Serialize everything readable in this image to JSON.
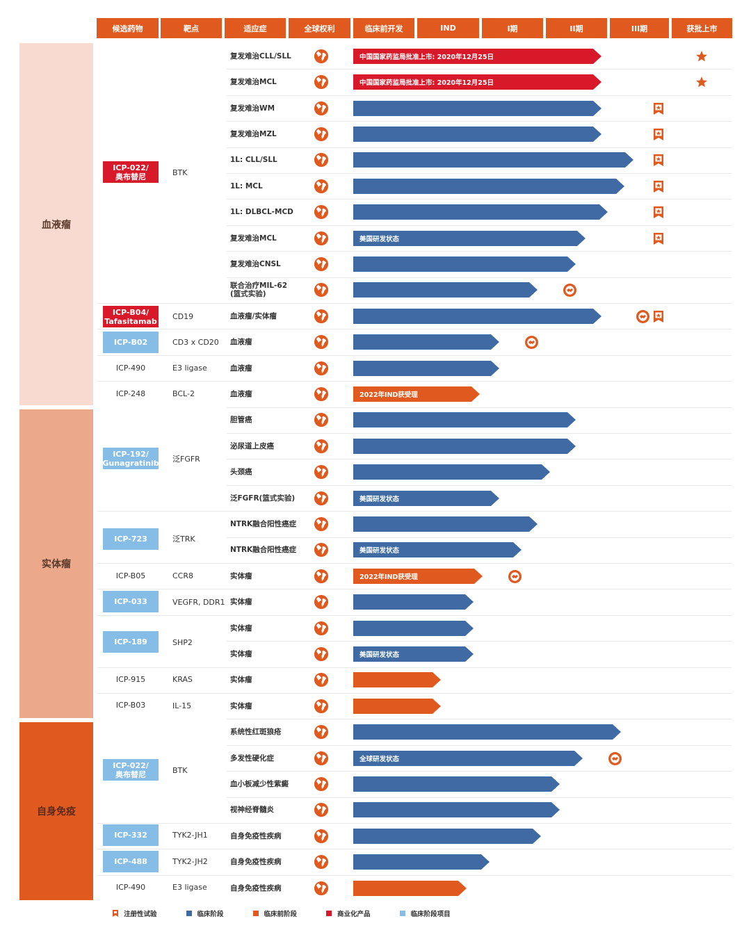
{
  "header": [
    "候选药物",
    "靶点",
    "适应症",
    "全球权利",
    "临床前开发",
    "IND",
    "I期",
    "II期",
    "III期",
    "获批上市"
  ],
  "categories": [
    {
      "label": "血液瘤",
      "color": "#f9dad0"
    },
    {
      "label": "实体瘤",
      "color": "#eba88a"
    },
    {
      "label": "自身免疫",
      "color": "#e05a1f"
    }
  ],
  "drugs": [
    {
      "label": "ICP-022/\n奥布替尼",
      "style": "red",
      "target": "BTK"
    },
    {
      "label": "ICP-B04/\nTafasitamab",
      "style": "red",
      "target": "CD19"
    },
    {
      "label": "ICP-B02",
      "style": "lightblue",
      "target": "CD3 x CD20"
    },
    {
      "label": "ICP-490",
      "style": "plain",
      "target": "E3 ligase"
    },
    {
      "label": "ICP-248",
      "style": "plain",
      "target": "BCL-2"
    },
    {
      "label": "ICP-192/\nGunagratinib",
      "style": "lightblue",
      "target": "泛FGFR"
    },
    {
      "label": "ICP-723",
      "style": "lightblue",
      "target": "泛TRK"
    },
    {
      "label": "ICP-B05",
      "style": "plain",
      "target": "CCR8"
    },
    {
      "label": "ICP-033",
      "style": "lightblue",
      "target": "VEGFR, DDR1"
    },
    {
      "label": "ICP-189",
      "style": "lightblue",
      "target": "SHP2"
    },
    {
      "label": "ICP-915",
      "style": "plain",
      "target": "KRAS"
    },
    {
      "label": "ICP-B03",
      "style": "plain",
      "target": "IL-15"
    },
    {
      "label": "ICP-022/\n奥布替尼",
      "style": "lightblue",
      "target": "BTK"
    },
    {
      "label": "ICP-332",
      "style": "lightblue",
      "target": "TYK2-JH1"
    },
    {
      "label": "ICP-488",
      "style": "lightblue",
      "target": "TYK2-JH2"
    },
    {
      "label": "ICP-490",
      "style": "plain",
      "target": "E3 ligase"
    }
  ],
  "chart_data": {
    "type": "bar",
    "stages": [
      "临床前开发",
      "IND",
      "I期",
      "II期",
      "III期",
      "获批上市"
    ],
    "rows": [
      {
        "indication": "复发难治CLL/SLL",
        "type": "commercial",
        "progress": 4.0,
        "label": "中国国家药监局批准上市: 2020年12月25日",
        "markers": [
          "approved"
        ]
      },
      {
        "indication": "复发难治MCL",
        "type": "commercial",
        "progress": 4.0,
        "label": "中国国家药监局批准上市: 2020年12月25日",
        "markers": [
          "approved"
        ]
      },
      {
        "indication": "复发难治WM",
        "type": "clinical",
        "progress": 4.0,
        "label": "",
        "markers": [
          "registrational"
        ]
      },
      {
        "indication": "复发难治MZL",
        "type": "clinical",
        "progress": 4.0,
        "label": "",
        "markers": [
          "registrational"
        ]
      },
      {
        "indication": "1L: CLL/SLL",
        "type": "clinical",
        "progress": 4.5,
        "label": "",
        "markers": [
          "registrational"
        ]
      },
      {
        "indication": "1L: MCL",
        "type": "clinical",
        "progress": 4.35,
        "label": "",
        "markers": [
          "registrational"
        ]
      },
      {
        "indication": "1L: DLBCL-MCD",
        "type": "clinical",
        "progress": 4.1,
        "label": "",
        "markers": [
          "registrational"
        ]
      },
      {
        "indication": "复发难治MCL",
        "type": "clinical",
        "progress": 3.75,
        "label": "美国研发状态",
        "markers": [
          "registrational"
        ]
      },
      {
        "indication": "复发难治CNSL",
        "type": "clinical",
        "progress": 3.6,
        "label": "",
        "markers": []
      },
      {
        "indication": "联合治疗MIL-62\n(篮式实验)",
        "type": "clinical",
        "progress": 3.0,
        "label": "",
        "markers": [
          "partnership"
        ]
      },
      {
        "indication": "血液瘤/实体瘤",
        "type": "clinical",
        "progress": 4.0,
        "label": "",
        "markers": [
          "partnership",
          "registrational"
        ]
      },
      {
        "indication": "血液瘤",
        "type": "clinical",
        "progress": 2.4,
        "label": "",
        "markers": [
          "partnership"
        ]
      },
      {
        "indication": "血液瘤",
        "type": "clinical",
        "progress": 2.4,
        "label": "",
        "markers": []
      },
      {
        "indication": "血液瘤",
        "type": "preclinical",
        "progress": 2.1,
        "label": "2022年IND获受理",
        "markers": []
      },
      {
        "indication": "胆管癌",
        "type": "clinical",
        "progress": 3.6,
        "label": "",
        "markers": []
      },
      {
        "indication": "泌尿道上皮癌",
        "type": "clinical",
        "progress": 3.6,
        "label": "",
        "markers": []
      },
      {
        "indication": "头颈癌",
        "type": "clinical",
        "progress": 3.2,
        "label": "",
        "markers": []
      },
      {
        "indication": "泛FGFR(篮式实验)",
        "type": "clinical",
        "progress": 2.4,
        "label": "美国研发状态",
        "markers": []
      },
      {
        "indication": "NTRK融合阳性癌症",
        "type": "clinical",
        "progress": 3.0,
        "label": "",
        "markers": []
      },
      {
        "indication": "NTRK融合阳性癌症",
        "type": "clinical",
        "progress": 2.75,
        "label": "美国研发状态",
        "markers": []
      },
      {
        "indication": "实体瘤",
        "type": "preclinical",
        "progress": 2.15,
        "label": "2022年IND获受理",
        "markers": [
          "partnership"
        ]
      },
      {
        "indication": "实体瘤",
        "type": "clinical",
        "progress": 2.0,
        "label": "",
        "markers": []
      },
      {
        "indication": "实体瘤",
        "type": "clinical",
        "progress": 2.0,
        "label": "",
        "markers": []
      },
      {
        "indication": "实体瘤",
        "type": "clinical",
        "progress": 2.0,
        "label": "美国研发状态",
        "markers": []
      },
      {
        "indication": "实体瘤",
        "type": "preclinical",
        "progress": 1.5,
        "label": "",
        "markers": []
      },
      {
        "indication": "实体瘤",
        "type": "preclinical",
        "progress": 1.5,
        "label": "",
        "markers": []
      },
      {
        "indication": "系统性红斑狼疮",
        "type": "clinical",
        "progress": 4.3,
        "label": "",
        "markers": []
      },
      {
        "indication": "多发性硬化症",
        "type": "clinical",
        "progress": 3.7,
        "label": "全球研发状态",
        "markers": [
          "partnership"
        ]
      },
      {
        "indication": "血小板减少性紫癜",
        "type": "clinical",
        "progress": 3.35,
        "label": "",
        "markers": []
      },
      {
        "indication": "视神经脊髓炎",
        "type": "clinical",
        "progress": 3.35,
        "label": "",
        "markers": []
      },
      {
        "indication": "自身免疫性疾病",
        "type": "clinical",
        "progress": 3.05,
        "label": "",
        "markers": []
      },
      {
        "indication": "自身免疫性疾病",
        "type": "clinical",
        "progress": 2.25,
        "label": "",
        "markers": []
      },
      {
        "indication": "自身免疫性疾病",
        "type": "preclinical",
        "progress": 1.9,
        "label": "",
        "markers": []
      }
    ]
  },
  "legend": [
    {
      "label": "注册性试验",
      "type": "registrational"
    },
    {
      "label": "临床阶段",
      "color": "#3f6aa3"
    },
    {
      "label": "临床前阶段",
      "color": "#e05a1f"
    },
    {
      "label": "商业化产品",
      "color": "#d7192a"
    },
    {
      "label": "临床阶段项目",
      "color": "#86bde6"
    }
  ],
  "colors": {
    "clinical": "#3f6aa3",
    "preclinical": "#e05a1f",
    "commercial": "#d7192a",
    "lightblue": "#86bde6",
    "marker": "#e05a1f"
  }
}
